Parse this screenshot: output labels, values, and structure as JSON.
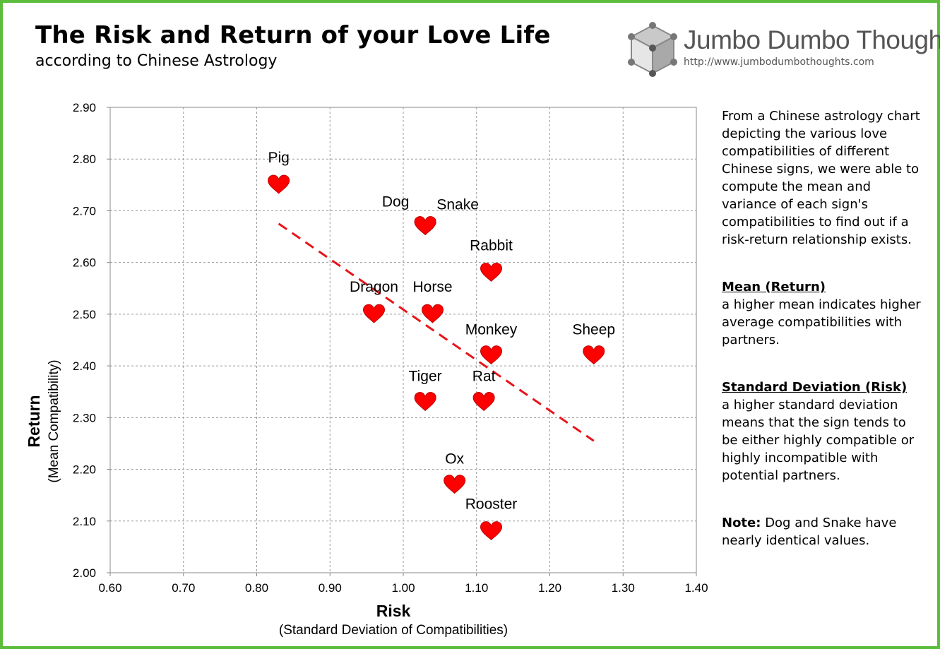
{
  "header": {
    "title": "The Risk and Return of your Love Life",
    "subtitle": "according to Chinese Astrology"
  },
  "brand": {
    "name": "Jumbo Dumbo Thoughts",
    "url": "http://www.jumbodumbothoughts.com",
    "logo_icon": "cube-logo-icon"
  },
  "sidebar": {
    "intro": "From a Chinese astrology chart depicting the various love compatibilities of different Chinese signs, we were able to compute the mean and variance of each sign's compatibilities to find out if a risk-return relationship exists.",
    "mean_heading": "Mean (Return)",
    "mean_text": "a higher mean indicates higher average compatibilities with partners.",
    "sd_heading": "Standard Deviation (Risk)",
    "sd_text": "a higher standard deviation means that the sign tends to be either highly compatible or highly incompatible with potential partners.",
    "note_label": "Note:",
    "note_text": "Dog and Snake have nearly identical values."
  },
  "chart_data": {
    "type": "scatter",
    "xlabel": "Risk",
    "xlabel_sub": "(Standard Deviation of Compatibilities)",
    "ylabel": "Return",
    "ylabel_sub": "(Mean Compatibility)",
    "xlim": [
      0.6,
      1.4
    ],
    "ylim": [
      2.0,
      2.9
    ],
    "xticks": [
      "0.60",
      "0.70",
      "0.80",
      "0.90",
      "1.00",
      "1.10",
      "1.20",
      "1.30",
      "1.40"
    ],
    "yticks": [
      "2.00",
      "2.10",
      "2.20",
      "2.30",
      "2.40",
      "2.50",
      "2.60",
      "2.70",
      "2.80",
      "2.90"
    ],
    "grid": true,
    "marker": "heart",
    "marker_color": "#ff0000",
    "trendline_color": "#e8141b",
    "points": [
      {
        "label": "Pig",
        "x": 0.83,
        "y": 2.75
      },
      {
        "label": "Dog",
        "x": 1.03,
        "y": 2.67
      },
      {
        "label": "Snake",
        "x": 1.03,
        "y": 2.67
      },
      {
        "label": "Rabbit",
        "x": 1.12,
        "y": 2.58
      },
      {
        "label": "Dragon",
        "x": 0.96,
        "y": 2.5
      },
      {
        "label": "Horse",
        "x": 1.04,
        "y": 2.5
      },
      {
        "label": "Monkey",
        "x": 1.12,
        "y": 2.42
      },
      {
        "label": "Sheep",
        "x": 1.26,
        "y": 2.42
      },
      {
        "label": "Tiger",
        "x": 1.03,
        "y": 2.33
      },
      {
        "label": "Rat",
        "x": 1.11,
        "y": 2.33
      },
      {
        "label": "Ox",
        "x": 1.07,
        "y": 2.17
      },
      {
        "label": "Rooster",
        "x": 1.12,
        "y": 2.08
      }
    ],
    "trendline": {
      "x": [
        0.83,
        1.26
      ],
      "y": [
        2.675,
        2.255
      ]
    }
  }
}
